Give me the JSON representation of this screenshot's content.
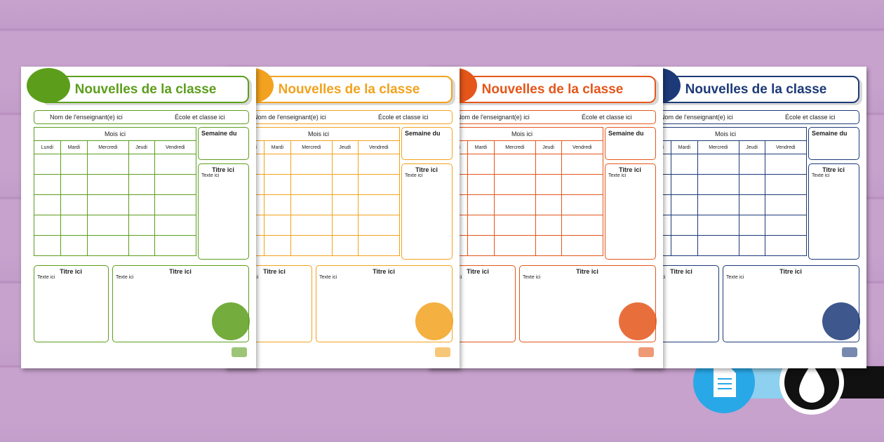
{
  "sheets": [
    {
      "color": "#5c9e1c",
      "title": "Nouvelles de la classe",
      "teacher": "Nom de l'enseignant(e) ici",
      "school": "École et classe ici",
      "month": "Mois ici",
      "days": [
        "Lundi",
        "Mardi",
        "Mercredi",
        "Jeudi",
        "Vendredi"
      ],
      "week": "Semaine du",
      "side_box": {
        "title": "Titre ici",
        "text": "Texte ici"
      },
      "bottom_boxes": [
        {
          "title": "Titre ici",
          "text": "Texte ici"
        },
        {
          "title": "Titre ici",
          "text": "Texte ici"
        }
      ]
    },
    {
      "color": "#f2a21e",
      "title": "Nouvelles de la classe",
      "teacher": "Nom de l'enseignant(e) ici",
      "school": "École et classe ici",
      "month": "Mois ici",
      "days": [
        "Lundi",
        "Mardi",
        "Mercredi",
        "Jeudi",
        "Vendredi"
      ],
      "week": "Semaine du",
      "side_box": {
        "title": "Titre ici",
        "text": "Texte ici"
      },
      "bottom_boxes": [
        {
          "title": "Titre ici",
          "text": "Texte ici"
        },
        {
          "title": "Titre ici",
          "text": "Texte ici"
        }
      ]
    },
    {
      "color": "#e4561a",
      "title": "Nouvelles de la classe",
      "teacher": "Nom de l'enseignant(e) ici",
      "school": "École et classe ici",
      "month": "Mois ici",
      "days": [
        "Lundi",
        "Mardi",
        "Mercredi",
        "Jeudi",
        "Vendredi"
      ],
      "week": "Semaine du",
      "side_box": {
        "title": "Titre ici",
        "text": "Texte ici"
      },
      "bottom_boxes": [
        {
          "title": "Titre ici",
          "text": "Texte ici"
        },
        {
          "title": "Titre ici",
          "text": "Texte ici"
        }
      ]
    },
    {
      "color": "#1c3a78",
      "title": "Nouvelles de la classe",
      "teacher": "Nom de l'enseignant(e) ici",
      "school": "École et classe ici",
      "month": "Mois ici",
      "days": [
        "Lundi",
        "Mardi",
        "Mercredi",
        "Jeudi",
        "Vendredi"
      ],
      "week": "Semaine du",
      "side_box": {
        "title": "Titre ici",
        "text": "Texte ici"
      },
      "bottom_boxes": [
        {
          "title": "Titre ici",
          "text": "Texte ici"
        },
        {
          "title": "Titre ici",
          "text": "Texte ici"
        }
      ]
    }
  ]
}
